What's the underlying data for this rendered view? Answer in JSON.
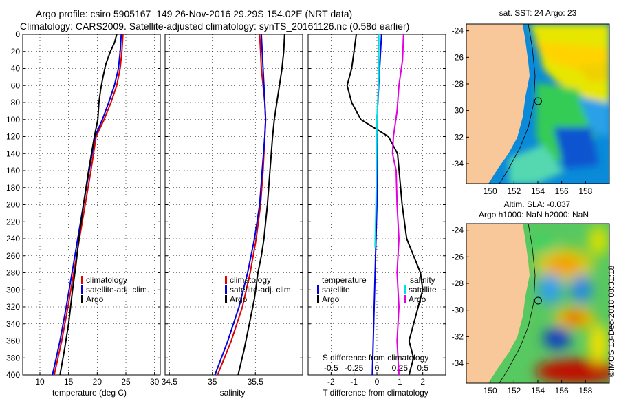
{
  "header": {
    "line1": "Argo profile: csiro 5905167_149 26-Nov-2016 29.29S 154.02E (NRT data)",
    "line2": "Climatology: CARS2009. Satellite-adjusted climatology: synTS_20161126.nc (0.58d earlier)"
  },
  "map_top": {
    "title": "sat. SST: 24 Argo: 23"
  },
  "map_bottom": {
    "title_line1": "Altim. SLA: -0.037",
    "title_line2": "Argo h1000: NaN h2000: NaN"
  },
  "credit": "©IMOS 13-Dec-2018 08:31:18",
  "colors": {
    "climatology": "#e00000",
    "satellite": "#0000e0",
    "argo": "#000000",
    "sat_salinity": "#00e0e0",
    "argo_salinity": "#e000e0",
    "land": "#f8c89a"
  },
  "chart_data": [
    {
      "type": "line",
      "title": "",
      "xlabel": "temperature (deg C)",
      "ylabel": "",
      "xlim": [
        7,
        31
      ],
      "ylim": [
        400,
        0
      ],
      "xticks": [
        "10",
        "15",
        "20",
        "25",
        "30"
      ],
      "xtick_values": [
        10,
        15,
        20,
        25,
        30
      ],
      "yticks": [
        "0",
        "20",
        "40",
        "60",
        "80",
        "100",
        "120",
        "140",
        "160",
        "180",
        "200",
        "220",
        "240",
        "260",
        "280",
        "300",
        "320",
        "340",
        "360",
        "380",
        "400"
      ],
      "legend": [
        "climatology",
        "satellite-adj. clim.",
        "Argo"
      ],
      "series": [
        {
          "name": "climatology",
          "points": [
            [
              24.5,
              0
            ],
            [
              24.3,
              20
            ],
            [
              24.0,
              40
            ],
            [
              23.4,
              60
            ],
            [
              22.4,
              80
            ],
            [
              21.2,
              100
            ],
            [
              19.8,
              120
            ],
            [
              18.9,
              160
            ],
            [
              17.9,
              200
            ],
            [
              16.9,
              240
            ],
            [
              15.9,
              280
            ],
            [
              14.9,
              320
            ],
            [
              13.8,
              360
            ],
            [
              12.5,
              400
            ]
          ]
        },
        {
          "name": "satellite-adj. clim.",
          "points": [
            [
              24.2,
              0
            ],
            [
              24.0,
              20
            ],
            [
              23.7,
              40
            ],
            [
              23.0,
              60
            ],
            [
              22.0,
              80
            ],
            [
              20.9,
              100
            ],
            [
              19.6,
              120
            ],
            [
              18.6,
              160
            ],
            [
              17.6,
              200
            ],
            [
              16.6,
              240
            ],
            [
              15.6,
              280
            ],
            [
              14.6,
              320
            ],
            [
              13.5,
              360
            ],
            [
              12.2,
              400
            ]
          ]
        },
        {
          "name": "Argo",
          "points": [
            [
              23.4,
              0
            ],
            [
              23.0,
              10
            ],
            [
              22.3,
              20
            ],
            [
              21.5,
              35
            ],
            [
              21.0,
              50
            ],
            [
              20.6,
              65
            ],
            [
              20.3,
              80
            ],
            [
              20.1,
              100
            ],
            [
              19.5,
              120
            ],
            [
              18.5,
              160
            ],
            [
              17.6,
              200
            ],
            [
              16.8,
              240
            ],
            [
              16.3,
              270
            ],
            [
              15.7,
              300
            ],
            [
              15.0,
              340
            ],
            [
              14.3,
              370
            ],
            [
              13.5,
              400
            ]
          ]
        }
      ]
    },
    {
      "type": "line",
      "title": "",
      "xlabel": "salinity",
      "ylabel": "",
      "xlim": [
        34.45,
        36.05
      ],
      "ylim": [
        400,
        0
      ],
      "xticks": [
        "34.5",
        "35",
        "35.5"
      ],
      "xtick_values": [
        34.5,
        35.0,
        35.5
      ],
      "legend": [
        "climatology",
        "satellite-adj. clim.",
        "Argo"
      ],
      "series": [
        {
          "name": "climatology",
          "points": [
            [
              35.55,
              0
            ],
            [
              35.56,
              20
            ],
            [
              35.57,
              40
            ],
            [
              35.59,
              60
            ],
            [
              35.61,
              80
            ],
            [
              35.62,
              100
            ],
            [
              35.61,
              120
            ],
            [
              35.59,
              160
            ],
            [
              35.56,
              200
            ],
            [
              35.51,
              240
            ],
            [
              35.44,
              280
            ],
            [
              35.35,
              320
            ],
            [
              35.22,
              360
            ],
            [
              35.06,
              400
            ]
          ]
        },
        {
          "name": "satellite-adj. clim.",
          "points": [
            [
              35.57,
              0
            ],
            [
              35.58,
              20
            ],
            [
              35.59,
              40
            ],
            [
              35.6,
              60
            ],
            [
              35.61,
              80
            ],
            [
              35.62,
              100
            ],
            [
              35.61,
              120
            ],
            [
              35.58,
              160
            ],
            [
              35.55,
              200
            ],
            [
              35.49,
              240
            ],
            [
              35.41,
              280
            ],
            [
              35.31,
              320
            ],
            [
              35.18,
              360
            ],
            [
              35.03,
              400
            ]
          ]
        },
        {
          "name": "Argo",
          "points": [
            [
              35.84,
              0
            ],
            [
              35.83,
              20
            ],
            [
              35.81,
              40
            ],
            [
              35.78,
              60
            ],
            [
              35.75,
              80
            ],
            [
              35.72,
              100
            ],
            [
              35.7,
              120
            ],
            [
              35.67,
              160
            ],
            [
              35.64,
              200
            ],
            [
              35.6,
              240
            ],
            [
              35.57,
              260
            ],
            [
              35.53,
              280
            ],
            [
              35.49,
              310
            ],
            [
              35.43,
              340
            ],
            [
              35.37,
              370
            ],
            [
              35.3,
              400
            ]
          ]
        }
      ]
    },
    {
      "type": "line",
      "title": "",
      "xlabel": "T difference from climatology",
      "xlabel2": "S difference from climatology",
      "ylabel": "",
      "xlim": [
        -3,
        3
      ],
      "ylim": [
        400,
        0
      ],
      "xticks": [
        "-2",
        "-1",
        "0",
        "1",
        "2"
      ],
      "xtick_values": [
        -2,
        -1,
        0,
        1,
        2
      ],
      "xticks2": [
        "-0.5",
        "-0.25",
        "0",
        "0.25",
        "0.5"
      ],
      "xtick2_values": [
        -0.5,
        -0.25,
        0,
        0.25,
        0.5
      ],
      "legend_temperature": {
        "title": "temperature",
        "items": [
          "satellite",
          "Argo"
        ]
      },
      "legend_salinity": {
        "title": "salinity",
        "items": [
          "satellite",
          "Argo"
        ]
      },
      "series": [
        {
          "name": "temperature satellite",
          "points": [
            [
              0.2,
              0
            ],
            [
              0.1,
              50
            ],
            [
              0.0,
              100
            ],
            [
              0.0,
              200
            ],
            [
              -0.1,
              300
            ],
            [
              -0.2,
              400
            ]
          ]
        },
        {
          "name": "temperature Argo",
          "points": [
            [
              -0.9,
              0
            ],
            [
              -1.0,
              20
            ],
            [
              -1.1,
              40
            ],
            [
              -1.3,
              60
            ],
            [
              -1.1,
              80
            ],
            [
              -0.7,
              100
            ],
            [
              -0.1,
              110
            ],
            [
              0.5,
              120
            ],
            [
              0.9,
              140
            ],
            [
              1.1,
              200
            ],
            [
              1.3,
              240
            ],
            [
              1.6,
              260
            ],
            [
              1.9,
              280
            ],
            [
              2.0,
              300
            ],
            [
              1.7,
              330
            ],
            [
              1.4,
              360
            ],
            [
              1.6,
              380
            ],
            [
              1.4,
              400
            ]
          ]
        },
        {
          "name": "salinity satellite",
          "points": [
            [
              0.02,
              0
            ],
            [
              0.02,
              50
            ],
            [
              0.0,
              100
            ],
            [
              -0.01,
              200
            ],
            [
              -0.02,
              250
            ]
          ]
        },
        {
          "name": "salinity Argo",
          "points": [
            [
              0.29,
              0
            ],
            [
              0.28,
              30
            ],
            [
              0.24,
              60
            ],
            [
              0.22,
              90
            ],
            [
              0.18,
              120
            ],
            [
              0.17,
              140
            ],
            [
              0.21,
              160
            ],
            [
              0.22,
              200
            ],
            [
              0.24,
              240
            ],
            [
              0.22,
              280
            ],
            [
              0.24,
              320
            ],
            [
              0.22,
              360
            ],
            [
              0.24,
              400
            ]
          ]
        }
      ]
    },
    {
      "type": "heatmap",
      "title": "sat. SST: 24 Argo: 23",
      "xlim": [
        148,
        160
      ],
      "ylim": [
        -35.5,
        -23.5
      ],
      "xticks": [
        "150",
        "152",
        "154",
        "156",
        "158"
      ],
      "yticks": [
        "-24",
        "-26",
        "-28",
        "-30",
        "-32",
        "-34"
      ],
      "xtick_values": [
        150,
        152,
        154,
        156,
        158
      ],
      "ytick_values": [
        -24,
        -26,
        -28,
        -30,
        -32,
        -34
      ],
      "marker": [
        154.02,
        -29.29
      ]
    },
    {
      "type": "heatmap",
      "title": "Altim. SLA: -0.037",
      "xlim": [
        148,
        160
      ],
      "ylim": [
        -35.5,
        -23.5
      ],
      "xticks": [
        "150",
        "152",
        "154",
        "156",
        "158"
      ],
      "yticks": [
        "-24",
        "-26",
        "-28",
        "-30",
        "-32",
        "-34"
      ],
      "xtick_values": [
        150,
        152,
        154,
        156,
        158
      ],
      "ytick_values": [
        -24,
        -26,
        -28,
        -30,
        -32,
        -34
      ],
      "marker": [
        154.02,
        -29.29
      ]
    }
  ]
}
